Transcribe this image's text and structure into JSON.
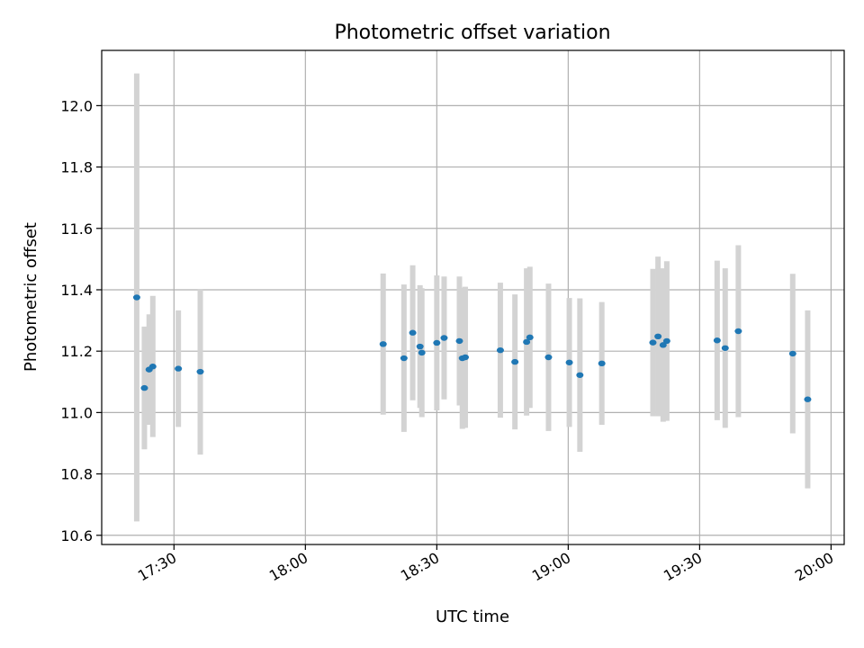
{
  "chart_data": {
    "type": "scatter",
    "title": "Photometric offset variation",
    "xlabel": "UTC time",
    "ylabel": "Photometric offset",
    "x_ticks": [
      "17:30",
      "18:00",
      "18:30",
      "19:00",
      "19:30",
      "20:00"
    ],
    "y_ticks": [
      "10.6",
      "10.8",
      "11.0",
      "11.2",
      "11.4",
      "11.6",
      "11.8",
      "12.0"
    ],
    "xlim": [
      "17:13:30",
      "20:03:00"
    ],
    "ylim": [
      10.57,
      12.18
    ],
    "grid": true,
    "legend": "none",
    "colors": {
      "point": "#1f77b4",
      "errorbar": "#d3d3d3",
      "grid": "#b0b0b0"
    },
    "series": [
      {
        "points": [
          {
            "x": "17:21:30",
            "y": 11.375,
            "err": 0.73
          },
          {
            "x": "17:23:15",
            "y": 11.08,
            "err": 0.2
          },
          {
            "x": "17:24:20",
            "y": 11.14,
            "err": 0.18
          },
          {
            "x": "17:25:10",
            "y": 11.15,
            "err": 0.23
          },
          {
            "x": "17:31:00",
            "y": 11.143,
            "err": 0.19
          },
          {
            "x": "17:36:00",
            "y": 11.133,
            "err": 0.27
          },
          {
            "x": "18:17:45",
            "y": 11.223,
            "err": 0.23
          },
          {
            "x": "18:22:30",
            "y": 11.177,
            "err": 0.24
          },
          {
            "x": "18:24:30",
            "y": 11.26,
            "err": 0.22
          },
          {
            "x": "18:26:10",
            "y": 11.215,
            "err": 0.2
          },
          {
            "x": "18:26:35",
            "y": 11.195,
            "err": 0.21
          },
          {
            "x": "18:30:00",
            "y": 11.227,
            "err": 0.22
          },
          {
            "x": "18:31:40",
            "y": 11.243,
            "err": 0.2
          },
          {
            "x": "18:35:10",
            "y": 11.233,
            "err": 0.21
          },
          {
            "x": "18:35:50",
            "y": 11.177,
            "err": 0.23
          },
          {
            "x": "18:36:30",
            "y": 11.18,
            "err": 0.23
          },
          {
            "x": "18:44:30",
            "y": 11.203,
            "err": 0.22
          },
          {
            "x": "18:47:50",
            "y": 11.165,
            "err": 0.22
          },
          {
            "x": "18:50:30",
            "y": 11.23,
            "err": 0.24
          },
          {
            "x": "18:51:15",
            "y": 11.245,
            "err": 0.23
          },
          {
            "x": "18:55:30",
            "y": 11.18,
            "err": 0.24
          },
          {
            "x": "19:00:15",
            "y": 11.163,
            "err": 0.21
          },
          {
            "x": "19:02:40",
            "y": 11.122,
            "err": 0.25
          },
          {
            "x": "19:07:40",
            "y": 11.16,
            "err": 0.2
          },
          {
            "x": "19:19:20",
            "y": 11.228,
            "err": 0.24
          },
          {
            "x": "19:20:30",
            "y": 11.248,
            "err": 0.26
          },
          {
            "x": "19:21:40",
            "y": 11.22,
            "err": 0.25
          },
          {
            "x": "19:22:30",
            "y": 11.233,
            "err": 0.26
          },
          {
            "x": "19:34:00",
            "y": 11.235,
            "err": 0.26
          },
          {
            "x": "19:35:50",
            "y": 11.21,
            "err": 0.26
          },
          {
            "x": "19:38:50",
            "y": 11.265,
            "err": 0.28
          },
          {
            "x": "19:51:15",
            "y": 11.192,
            "err": 0.26
          },
          {
            "x": "19:54:40",
            "y": 11.043,
            "err": 0.29
          }
        ]
      }
    ]
  }
}
